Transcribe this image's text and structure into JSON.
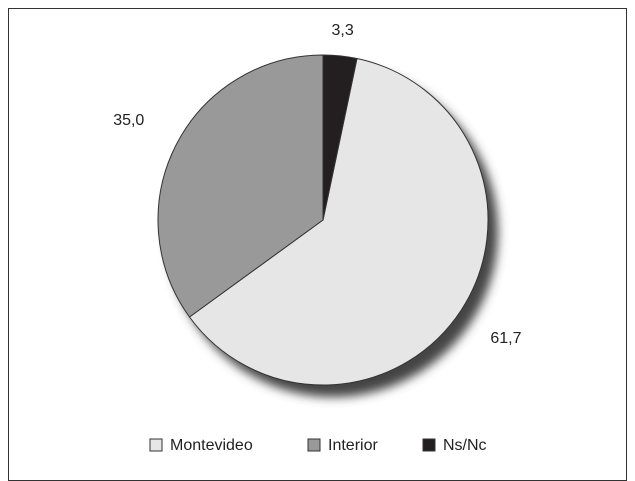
{
  "chart_data": {
    "type": "pie",
    "categories": [
      "Montevideo",
      "Interior",
      "Ns/Nc"
    ],
    "values": [
      61.7,
      35.0,
      3.3
    ],
    "value_labels": [
      "61,7",
      "35,0",
      "3,3"
    ],
    "colors": [
      "#e6e6e6",
      "#999999",
      "#231f20"
    ],
    "legend": "bottom"
  }
}
